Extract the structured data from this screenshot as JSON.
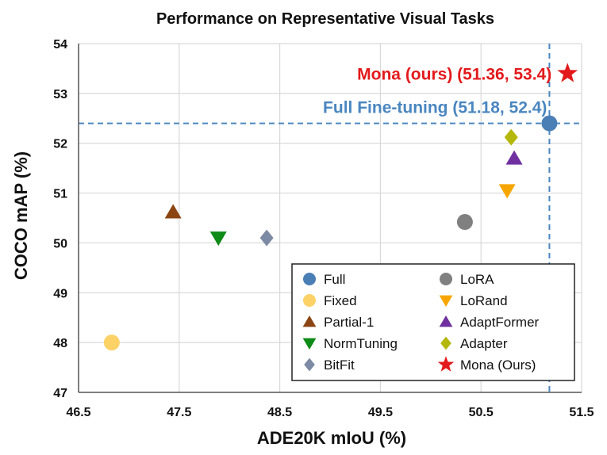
{
  "chart_data": {
    "type": "scatter",
    "title": "Performance on Representative Visual Tasks",
    "xlabel": "ADE20K mIoU (%)",
    "ylabel": "COCO mAP (%)",
    "xlim": [
      46.5,
      51.5
    ],
    "ylim": [
      47,
      54
    ],
    "xticks": [
      "46.5",
      "47.5",
      "48.5",
      "49.5",
      "50.5",
      "51.5"
    ],
    "yticks": [
      "47",
      "48",
      "49",
      "50",
      "51",
      "52",
      "53",
      "54"
    ],
    "grid": true,
    "legend_position": "bottom-right",
    "reference_lines": {
      "x": 51.18,
      "y": 52.4,
      "style": "dashed",
      "color": "#4a86c0"
    },
    "series": [
      {
        "name": "Full",
        "x": 51.18,
        "y": 52.4,
        "marker": "circle",
        "color": "#4a7fb5"
      },
      {
        "name": "Fixed",
        "x": 46.83,
        "y": 48.0,
        "marker": "circle",
        "color": "#fcd267"
      },
      {
        "name": "Partial-1",
        "x": 47.44,
        "y": 50.62,
        "marker": "triangle-up",
        "color": "#8b4513"
      },
      {
        "name": "NormTuning",
        "x": 47.89,
        "y": 50.1,
        "marker": "triangle-down",
        "color": "#0e8a16"
      },
      {
        "name": "BitFit",
        "x": 48.37,
        "y": 50.1,
        "marker": "diamond",
        "color": "#7c8aa3"
      },
      {
        "name": "LoRA",
        "x": 50.34,
        "y": 50.42,
        "marker": "circle",
        "color": "#808080"
      },
      {
        "name": "LoRand",
        "x": 50.76,
        "y": 51.05,
        "marker": "triangle-down",
        "color": "#f7a600"
      },
      {
        "name": "AdaptFormer",
        "x": 50.83,
        "y": 51.7,
        "marker": "triangle-up",
        "color": "#7030a0"
      },
      {
        "name": "Adapter",
        "x": 50.8,
        "y": 52.12,
        "marker": "diamond",
        "color": "#b5b80c"
      },
      {
        "name": "Mona (Ours)",
        "x": 51.36,
        "y": 53.4,
        "marker": "star",
        "color": "#e31a1c"
      }
    ],
    "annotations": [
      {
        "text": "Mona (ours) (51.36, 53.4)",
        "color": "#e31a1c"
      },
      {
        "text": "Full Fine-tuning (51.18, 52.4)",
        "color": "#4a86c0"
      }
    ]
  }
}
